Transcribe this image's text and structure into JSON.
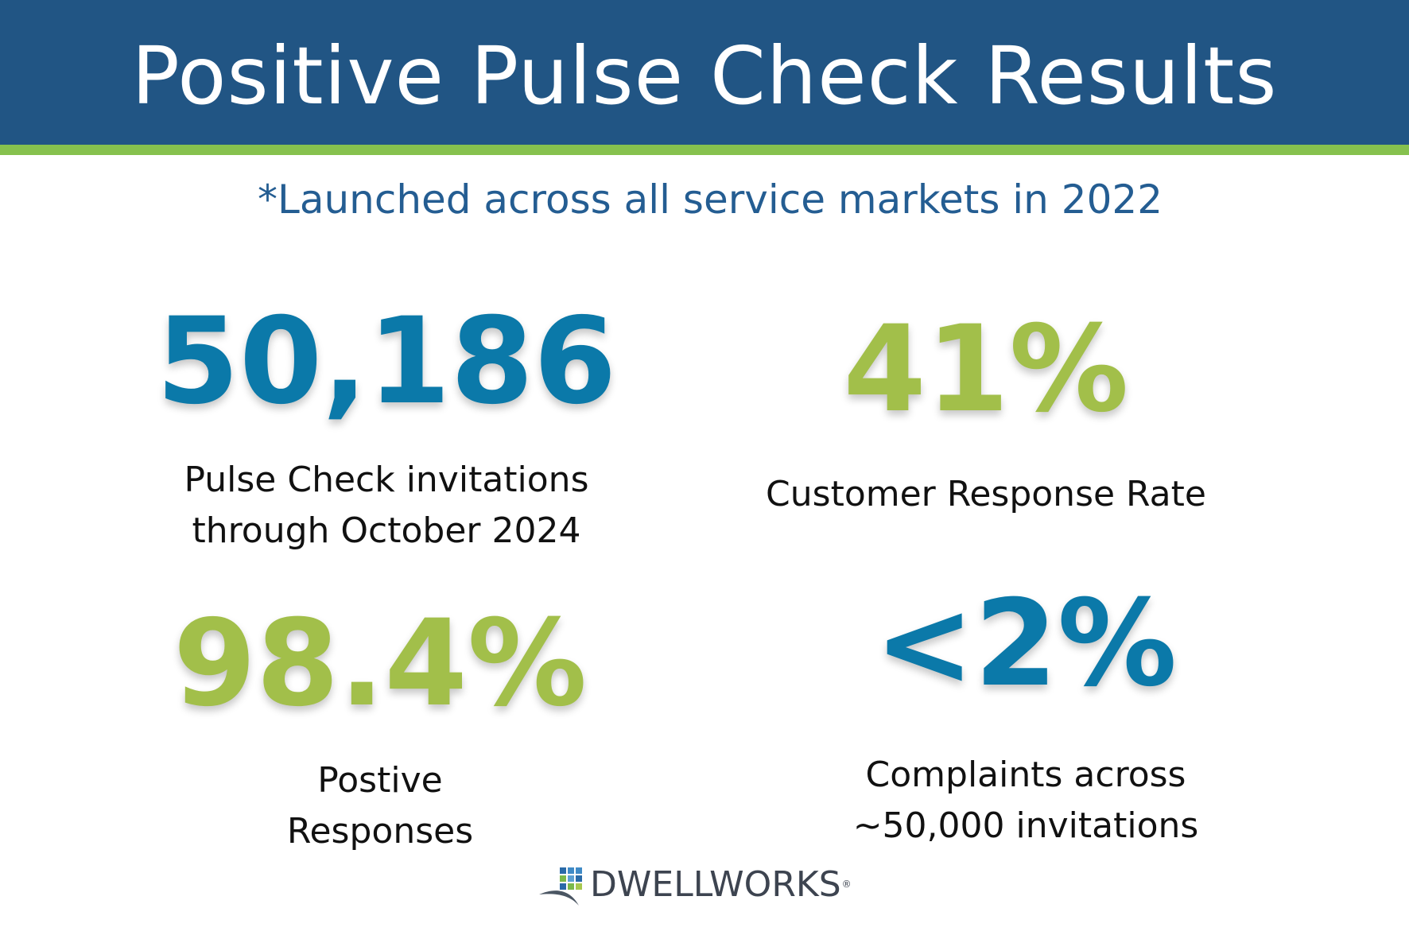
{
  "header": {
    "title": "Positive Pulse Check Results"
  },
  "subtitle": "*Launched across all service markets in 2022",
  "stats": [
    {
      "value": "50,186",
      "label_lines": [
        "Pulse Check invitations",
        "through October 2024"
      ],
      "color": "#0b79a9"
    },
    {
      "value": "41%",
      "label_lines": [
        "Customer Response Rate"
      ],
      "color": "#a2bf4a"
    },
    {
      "value": "98.4%",
      "label_lines": [
        "Postive",
        "Responses"
      ],
      "color": "#a2bf4a"
    },
    {
      "value": "<2%",
      "label_lines": [
        "Complaints across",
        "~50,000 invitations"
      ],
      "color": "#0b79a9"
    }
  ],
  "logo": {
    "text": "DWELLWORKS",
    "registered": "®",
    "icon": "dwellworks-logo-icon"
  },
  "colors": {
    "header_bg": "#215584",
    "accent_stripe": "#86c14e",
    "blue_stat": "#0b79a9",
    "green_stat": "#a2bf4a",
    "subtitle": "#245d92"
  }
}
